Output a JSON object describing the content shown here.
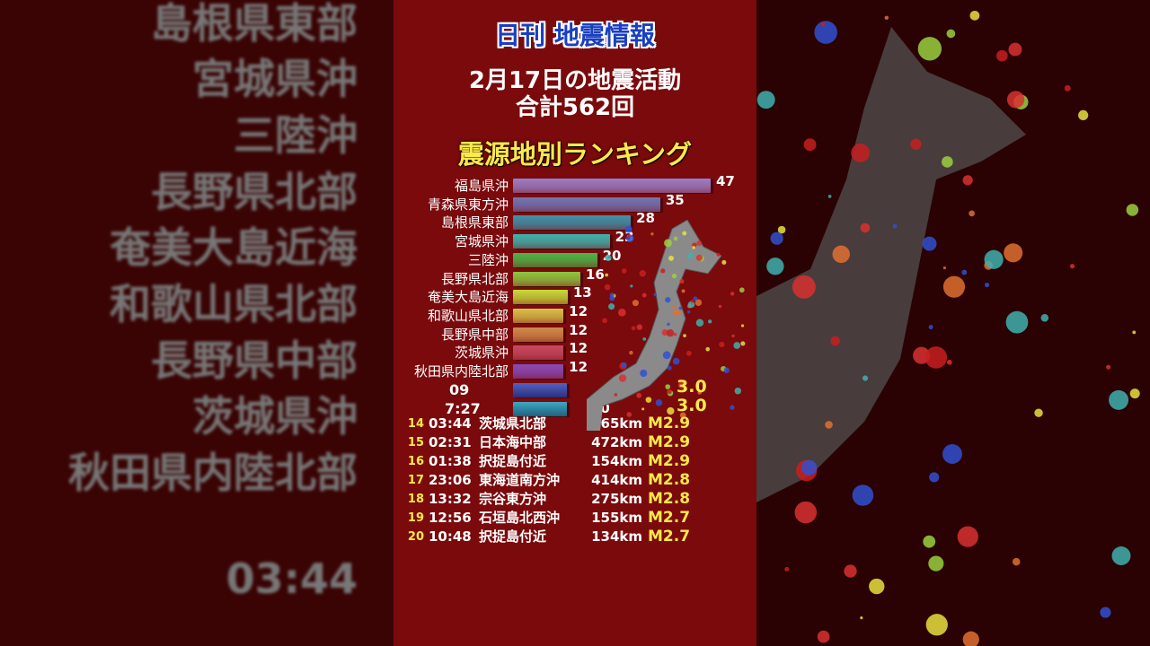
{
  "brand": "日刊 地震情報",
  "headline": "2月17日の地震活動",
  "total": "合計562回",
  "ranking_title": "震源地別ランキング",
  "colors": {
    "background": "#7a0a0c",
    "accent": "#ffe94a",
    "brand": "#1a3fc0"
  },
  "chart_data": {
    "type": "bar",
    "orientation": "horizontal",
    "title": "震源地別ランキング",
    "categories": [
      "福島県沖",
      "青森県東方沖",
      "島根県東部",
      "宮城県沖",
      "三陸沖",
      "長野県北部",
      "奄美大島近海",
      "和歌山県北部",
      "長野県中部",
      "茨城県沖",
      "秋田県内陸北部"
    ],
    "values": [
      47,
      35,
      28,
      23,
      20,
      16,
      13,
      12,
      12,
      12,
      12
    ],
    "value_labels": [
      "47",
      "35",
      "28",
      "23",
      "20",
      "16",
      "13",
      "12",
      "12",
      "12",
      "12"
    ],
    "bar_colors": [
      "#9a7ec8",
      "#7076b8",
      "#3f93ad",
      "#3eb5b0",
      "#4cb648",
      "#8cc63f",
      "#c6d93a",
      "#d8c047",
      "#d08a4a",
      "#c84a60",
      "#8a4ab8"
    ]
  },
  "table": {
    "rows": [
      {
        "rank": "14",
        "time": "03:44",
        "place": "茨城県北部",
        "depth": "65km",
        "mag": "M2.9"
      },
      {
        "rank": "15",
        "time": "02:31",
        "place": "日本海中部",
        "depth": "472km",
        "mag": "M2.9"
      },
      {
        "rank": "16",
        "time": "01:38",
        "place": "択捉島付近",
        "depth": "154km",
        "mag": "M2.9"
      },
      {
        "rank": "17",
        "time": "23:06",
        "place": "東海道南方沖",
        "depth": "414km",
        "mag": "M2.8"
      },
      {
        "rank": "18",
        "time": "13:32",
        "place": "宗谷東方沖",
        "depth": "275km",
        "mag": "M2.8"
      },
      {
        "rank": "19",
        "time": "12:56",
        "place": "石垣島北西沖",
        "depth": "155km",
        "mag": "M2.7"
      },
      {
        "rank": "20",
        "time": "10:48",
        "place": "択捉島付近",
        "depth": "134km",
        "mag": "M2.7"
      }
    ],
    "partial": [
      {
        "time": "09",
        "mag": "3.0"
      },
      {
        "time": "7:27",
        "depth": "20",
        "mag": "3.0"
      }
    ]
  }
}
